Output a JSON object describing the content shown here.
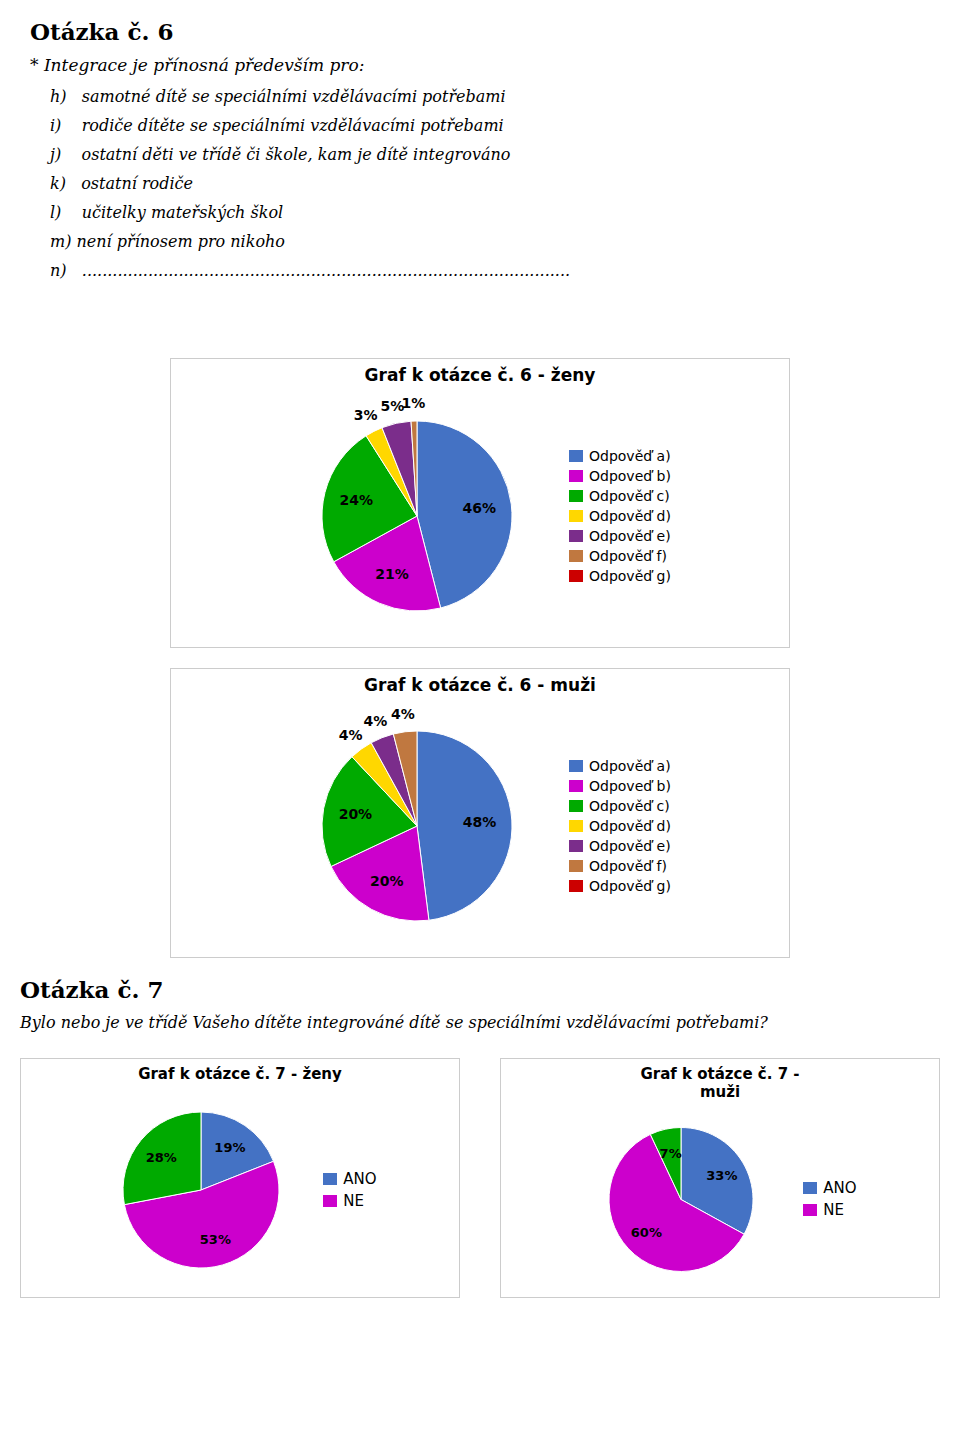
{
  "chart_data": [
    {
      "type": "pie",
      "title": "Graf k otázce č. 6 - ženy",
      "annotations": [
        "Otázka č. 6",
        "* Integrace je přínosná především pro:",
        "h)   samotné dítě se speciálními vzdělávacími potřebami",
        "i)    rodiče dítěte se speciálními vzdělávacími potřebami",
        "j)    ostatní děti ve třídě či škole, kam je dítě integrováno",
        "k)   ostatní rodiče",
        "l)    učitelky mateřských škol",
        "m) není přínosem pro nikoho",
        "n)   ................................................................................................"
      ],
      "categories": [
        "Odpověď a)",
        "Odpoveď b)",
        "Odpověď c)",
        "Odpověď d)",
        "Odpověď e)",
        "Odpověď f)",
        "Odpověď g)"
      ],
      "values": [
        46,
        21,
        24,
        3,
        5,
        1,
        0
      ],
      "value_labels": [
        "46%",
        "21%",
        "24%",
        "3%",
        "5%",
        "1%",
        null
      ],
      "colors": [
        "#4472C4",
        "#CC00CC",
        "#00AA00",
        "#FFD700",
        "#7B2D8B",
        "#C07840",
        "#CC0000"
      ],
      "data_labels": true,
      "legend": "right"
    },
    {
      "type": "pie",
      "title": "Graf k otázce č. 6 - muži",
      "categories": [
        "Odpověď a)",
        "Odpoveď b)",
        "Odpověď c)",
        "Odpověď d)",
        "Odpověď e)",
        "Odpověď f)",
        "Odpověď g)"
      ],
      "values": [
        48,
        20,
        20,
        4,
        4,
        4,
        0
      ],
      "value_labels": [
        "48%",
        "20%",
        "20%",
        "4%",
        "4%",
        "4%",
        null
      ],
      "colors": [
        "#4472C4",
        "#CC00CC",
        "#00AA00",
        "#FFD700",
        "#7B2D8B",
        "#C07840",
        "#CC0000"
      ],
      "data_labels": true,
      "legend": "right"
    },
    {
      "type": "pie",
      "title": "Graf k otázce č. 7 - ženy",
      "annotations": [
        "Otázka č. 7",
        "Bylo nebo je ve třídě Vašeho dítěte integrováné dítě se speciálními vzdělávacími potřebami?"
      ],
      "categories": [
        "ANO",
        "NE",
        null
      ],
      "values": [
        19,
        53,
        28
      ],
      "value_labels": [
        "19%",
        "53%",
        "28%"
      ],
      "colors": [
        "#4472C4",
        "#CC00CC",
        "#00AA00"
      ],
      "data_labels": true,
      "legend": "right"
    },
    {
      "type": "pie",
      "title": "Graf k otázce č. 7 -\nmuži",
      "categories": [
        "ANO",
        "NE",
        null
      ],
      "values": [
        33,
        60,
        7
      ],
      "value_labels": [
        "33%",
        "60%",
        "7%"
      ],
      "colors": [
        "#4472C4",
        "#CC00CC",
        "#00AA00"
      ],
      "data_labels": true,
      "legend": "right"
    }
  ]
}
